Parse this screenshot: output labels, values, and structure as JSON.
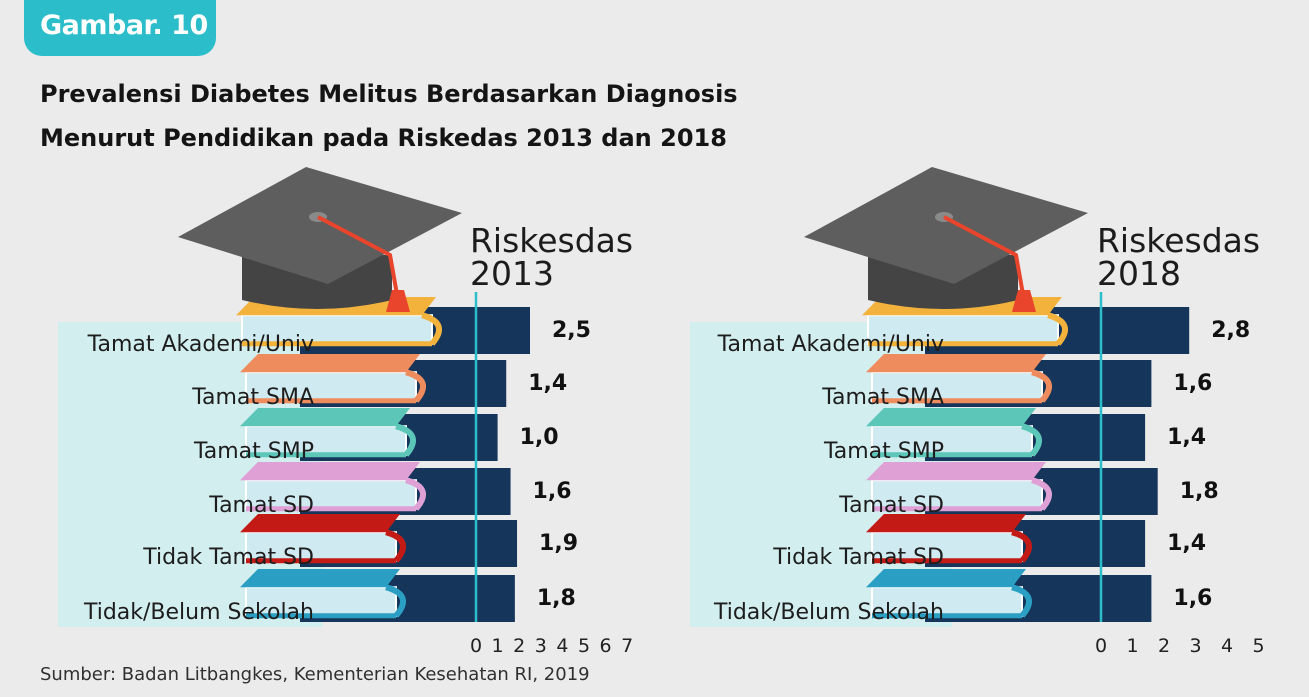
{
  "figure": {
    "badge": "Gambar. 10",
    "title_line1": "Prevalensi Diabetes Melitus Berdasarkan Diagnosis",
    "title_line2": "Menurut Pendidikan pada Riskedas 2013 dan 2018",
    "source": "Sumber: Badan Litbangkes, Kementerian Kesehatan RI, 2019"
  },
  "colors": {
    "bar": "#16355a",
    "axis": "#2bbdc9",
    "label_bg": "#d2eeef",
    "badge": "#2bbdc9",
    "cap": "#5e5e5e",
    "tassel": "#e8452c",
    "books": [
      "#f3b23c",
      "#ef8c5e",
      "#5cc6b8",
      "#dfa0d6",
      "#c41a16",
      "#2b9fc3"
    ]
  },
  "chart_data": [
    {
      "type": "bar",
      "orientation": "horizontal",
      "title": "Riskesdas 2013",
      "title_line1": "Riskesdas",
      "title_line2": "2013",
      "categories": [
        "Tamat Akademi/Univ",
        "Tamat SMA",
        "Tamat SMP",
        "Tamat SD",
        "Tidak Tamat SD",
        "Tidak/Belum Sekolah"
      ],
      "values": [
        2.5,
        1.4,
        1.0,
        1.6,
        1.9,
        1.8
      ],
      "value_labels": [
        "2,5",
        "1,4",
        "1,0",
        "1,6",
        "1,9",
        "1,8"
      ],
      "xlim": [
        0,
        7
      ],
      "ticks": [
        "0",
        "1",
        "2",
        "3",
        "4",
        "5",
        "6",
        "7"
      ]
    },
    {
      "type": "bar",
      "orientation": "horizontal",
      "title": "Riskesdas 2018",
      "title_line1": "Riskesdas",
      "title_line2": "2018",
      "categories": [
        "Tamat Akademi/Univ",
        "Tamat SMA",
        "Tamat SMP",
        "Tamat SD",
        "Tidak Tamat SD",
        "Tidak/Belum Sekolah"
      ],
      "values": [
        2.8,
        1.6,
        1.4,
        1.8,
        1.4,
        1.6
      ],
      "value_labels": [
        "2,8",
        "1,6",
        "1,4",
        "1,8",
        "1,4",
        "1,6"
      ],
      "xlim": [
        0,
        5
      ],
      "ticks": [
        "0",
        "1",
        "2",
        "3",
        "4",
        "5"
      ]
    }
  ]
}
